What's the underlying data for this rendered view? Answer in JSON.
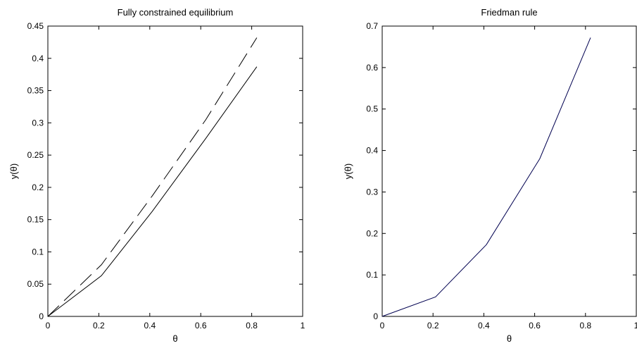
{
  "chart_data": [
    {
      "type": "line",
      "title": "Fully constrained equilibrium",
      "xlabel": "θ",
      "ylabel": "y(θ)",
      "xlim": [
        0,
        1
      ],
      "ylim": [
        0,
        0.45
      ],
      "xticks": [
        "0",
        "0.2",
        "0.4",
        "0.6",
        "0.8",
        "1"
      ],
      "yticks": [
        "0",
        "0.05",
        "0.1",
        "0.15",
        "0.2",
        "0.25",
        "0.3",
        "0.35",
        "0.4",
        "0.45"
      ],
      "grid": false,
      "series": [
        {
          "style": "solid",
          "color": "#000000",
          "x": [
            0,
            0.21,
            0.41,
            0.62,
            0.82
          ],
          "y": [
            0,
            0.063,
            0.163,
            0.276,
            0.387
          ]
        },
        {
          "style": "dashed",
          "color": "#000000",
          "x": [
            0,
            0.21,
            0.41,
            0.62,
            0.82
          ],
          "y": [
            0,
            0.08,
            0.187,
            0.305,
            0.432
          ]
        }
      ]
    },
    {
      "type": "line",
      "title": "Friedman rule",
      "xlabel": "θ",
      "ylabel": "y(θ)",
      "xlim": [
        0,
        1
      ],
      "ylim": [
        0,
        0.7
      ],
      "xticks": [
        "0",
        "0.2",
        "0.4",
        "0.6",
        "0.8",
        "1"
      ],
      "yticks": [
        "0",
        "0.1",
        "0.2",
        "0.3",
        "0.4",
        "0.5",
        "0.6",
        "0.7"
      ],
      "grid": false,
      "series": [
        {
          "style": "solid",
          "color": "#000050",
          "x": [
            0,
            0.21,
            0.41,
            0.62,
            0.82
          ],
          "y": [
            0,
            0.047,
            0.173,
            0.38,
            0.672
          ]
        }
      ]
    }
  ]
}
